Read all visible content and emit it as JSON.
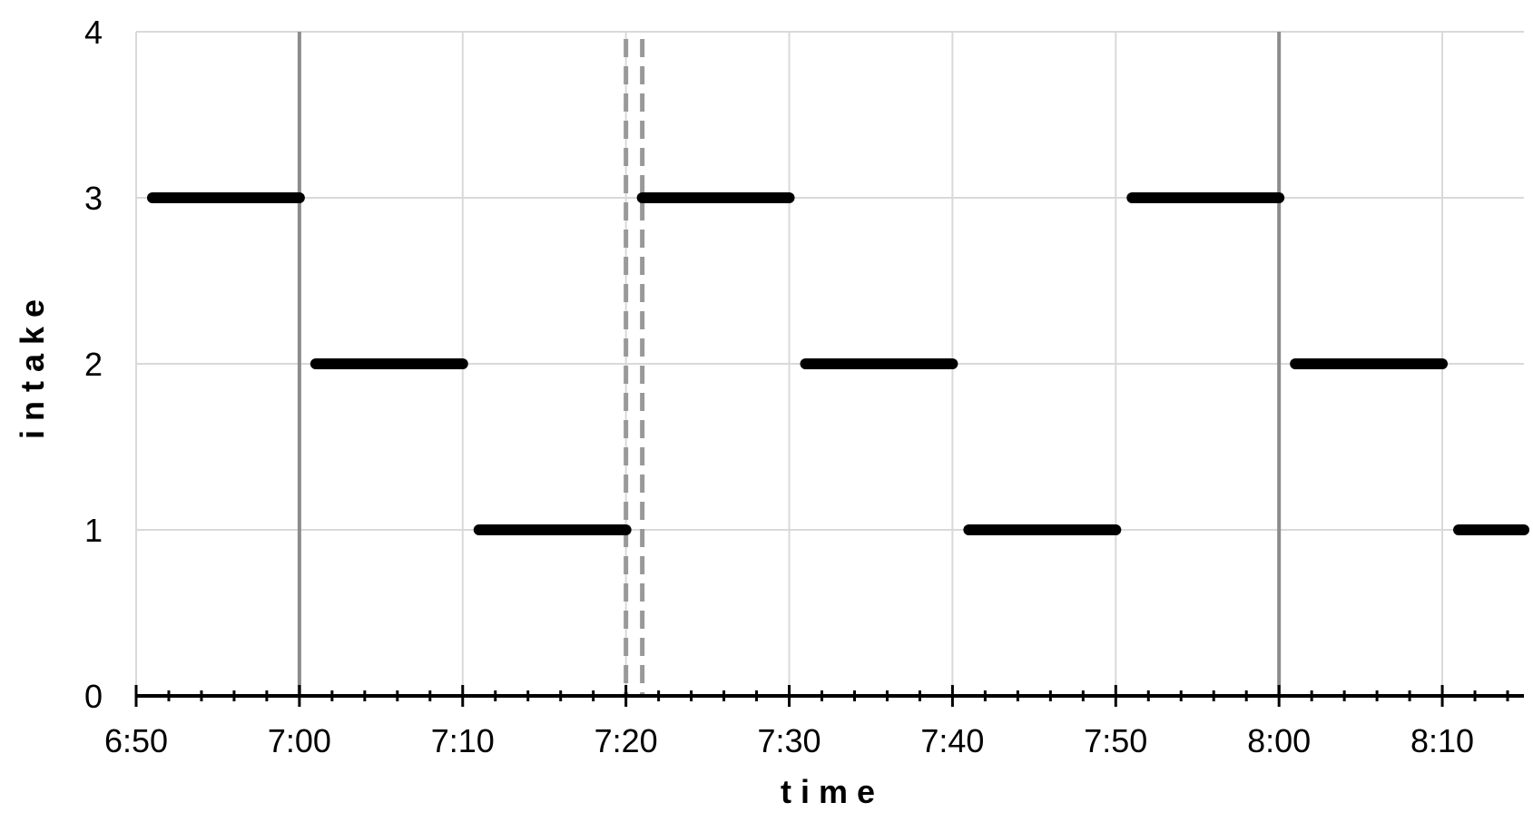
{
  "chart_data": {
    "type": "line",
    "title": "",
    "xlabel": "time",
    "ylabel": "intake",
    "x_unit": "clock time (h:mm)",
    "xlim": [
      "6:50",
      "8:15"
    ],
    "ylim": [
      0,
      4
    ],
    "x_ticks": [
      "6:50",
      "7:00",
      "7:10",
      "7:20",
      "7:30",
      "7:40",
      "7:50",
      "8:00",
      "8:10"
    ],
    "x_minor_tick_interval_minutes": 2,
    "y_ticks": [
      "0",
      "1",
      "2",
      "3",
      "4"
    ],
    "grid": true,
    "legend": "none",
    "series": [
      {
        "color": "#000000",
        "segments": [
          {
            "x_start": "6:51",
            "x_end": "7:00",
            "y": 3
          },
          {
            "x_start": "7:01",
            "x_end": "7:10",
            "y": 2
          },
          {
            "x_start": "7:11",
            "x_end": "7:20",
            "y": 1
          },
          {
            "x_start": "7:21",
            "x_end": "7:30",
            "y": 3
          },
          {
            "x_start": "7:31",
            "x_end": "7:40",
            "y": 2
          },
          {
            "x_start": "7:41",
            "x_end": "7:50",
            "y": 1
          },
          {
            "x_start": "7:51",
            "x_end": "8:00",
            "y": 3
          },
          {
            "x_start": "8:01",
            "x_end": "8:10",
            "y": 2
          },
          {
            "x_start": "8:11",
            "x_end": "8:15",
            "y": 1
          }
        ]
      }
    ],
    "reference_lines": [
      {
        "x": "7:00",
        "style": "solid",
        "color": "#8c8c8c"
      },
      {
        "x": "8:00",
        "style": "solid",
        "color": "#8c8c8c"
      },
      {
        "x": "7:20",
        "style": "dashed",
        "color": "#999999"
      },
      {
        "x": "7:21",
        "style": "dashed",
        "color": "#999999"
      }
    ],
    "colors": {
      "series": "#000000",
      "grid": "#d9d9d9",
      "axis": "#000000"
    }
  }
}
